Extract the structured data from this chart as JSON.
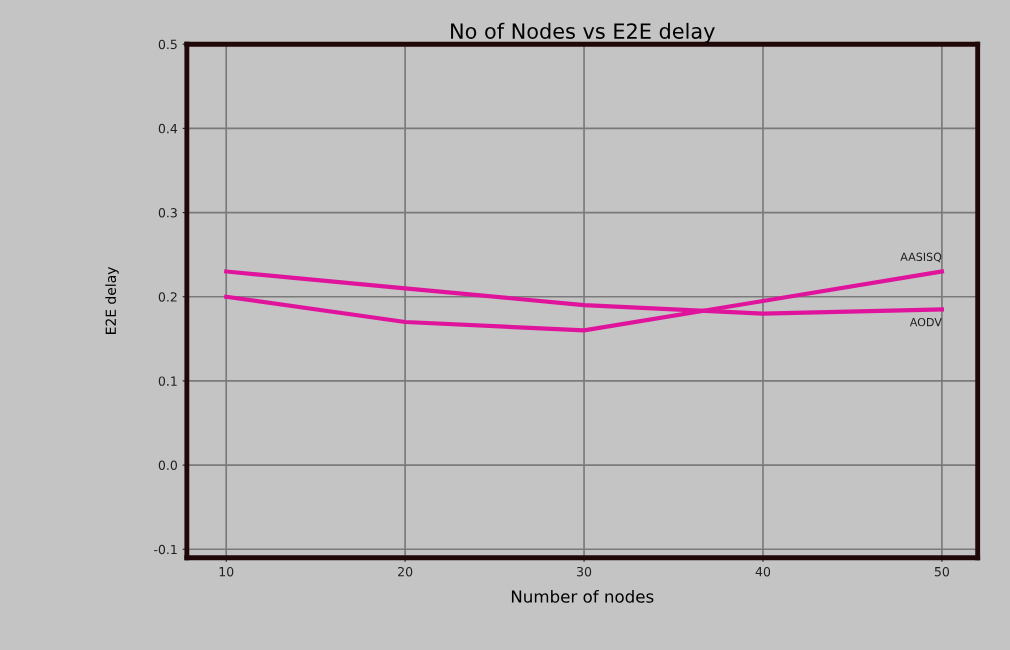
{
  "chart_data": {
    "type": "line",
    "title": "No of Nodes vs E2E delay",
    "xlabel": "Number of nodes",
    "ylabel": "E2E delay",
    "x": [
      10,
      20,
      30,
      40,
      50
    ],
    "series": [
      {
        "name": "AODV",
        "color": "#e0149c",
        "values": [
          0.23,
          0.21,
          0.19,
          0.18,
          0.185
        ]
      },
      {
        "name": "AASISQ",
        "color": "#e0149c",
        "values": [
          0.2,
          0.17,
          0.16,
          0.195,
          0.23
        ]
      }
    ],
    "xlim": [
      7.8,
      52
    ],
    "xticks": [
      10,
      20,
      30,
      40,
      50
    ],
    "ylim": [
      -0.11,
      0.5
    ],
    "yticks": [
      {
        "value": -0.1,
        "label": "-0.1"
      },
      {
        "value": 0.0,
        "label": "0.0"
      },
      {
        "value": 0.1,
        "label": "0.1"
      },
      {
        "value": 0.2,
        "label": "0.2"
      },
      {
        "value": 0.3,
        "label": "0.3"
      },
      {
        "value": 0.4,
        "label": "0.4"
      },
      {
        "value": 0.5,
        "label": "0.5"
      }
    ],
    "grid": true,
    "marker": "none",
    "line_style": "solid"
  }
}
